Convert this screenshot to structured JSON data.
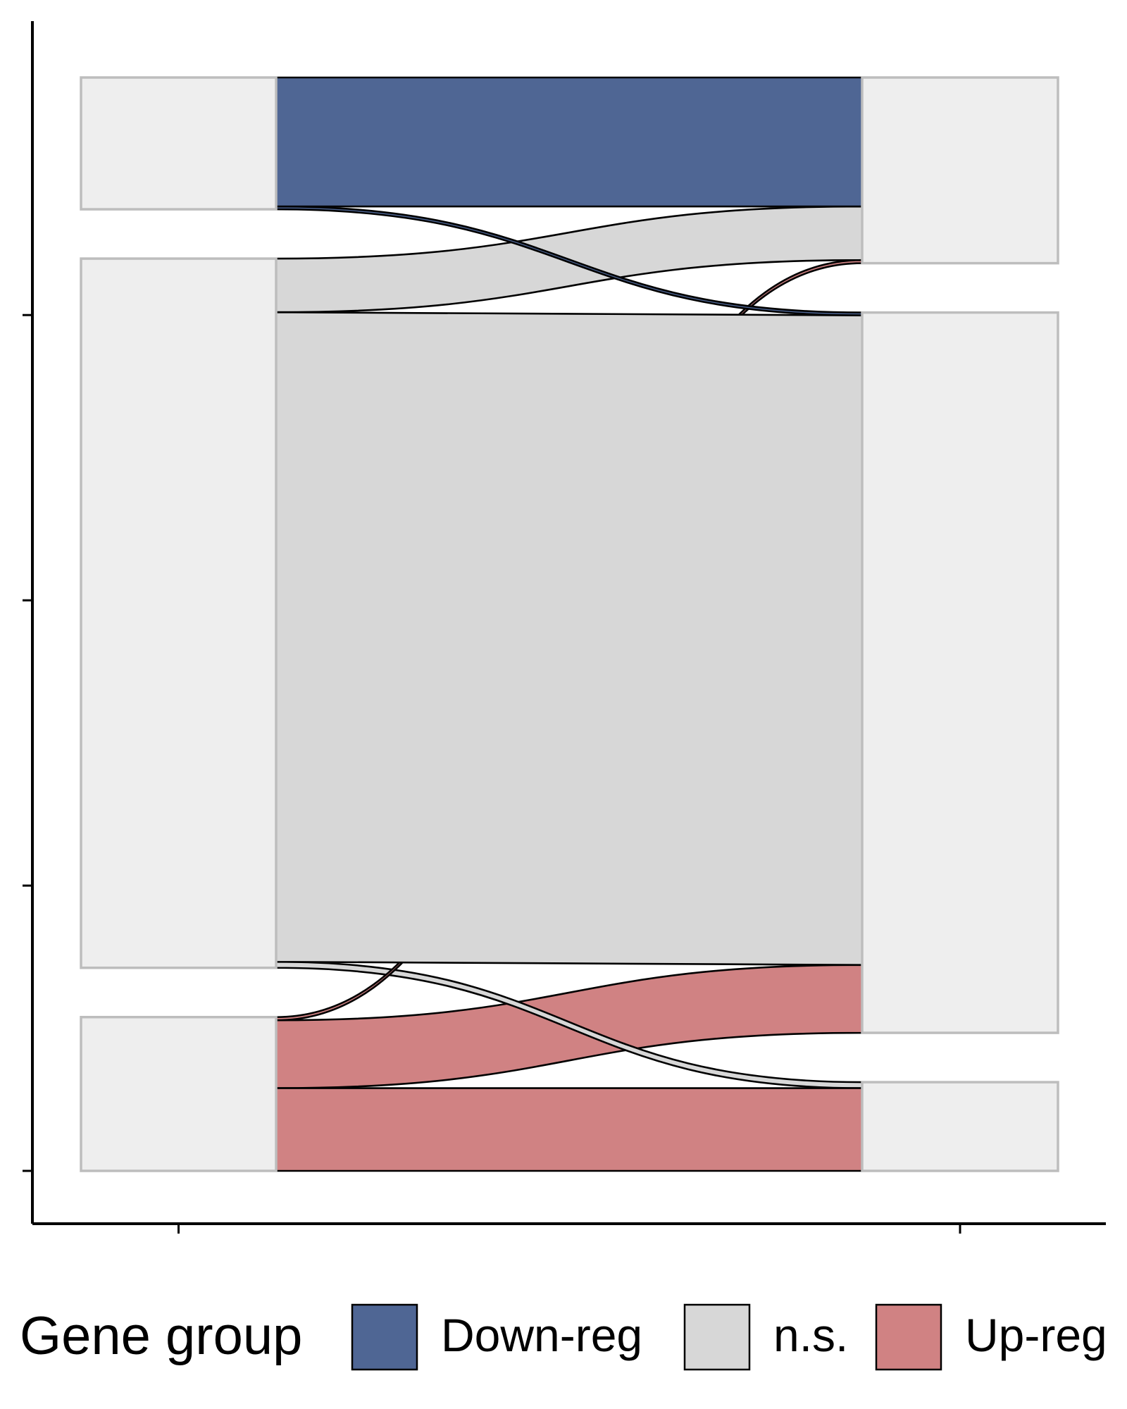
{
  "chart_data": {
    "type": "alluvial",
    "title": "",
    "xlabel": "",
    "ylabel": "",
    "x_categories": [
      "",
      ""
    ],
    "y_ticks_visible_without_labels": true,
    "legend": {
      "title": "Gene group",
      "placement": "bottom",
      "entries": [
        {
          "label": "Down-reg",
          "color": "#4f6694"
        },
        {
          "label": "n.s.",
          "color": "#d7d7d7"
        },
        {
          "label": "Up-reg",
          "color": "#d08283"
        }
      ]
    },
    "stratum_fill": "#eeeeee",
    "stratum_border": "#bdbdbd",
    "axis_1_strata": [
      {
        "group": "Down-reg",
        "value": 462
      },
      {
        "group": "n.s.",
        "value": 2486
      },
      {
        "group": "Up-reg",
        "value": 539
      }
    ],
    "axis_2_strata": [
      {
        "group": "Down-reg",
        "value": 651
      },
      {
        "group": "n.s.",
        "value": 2525
      },
      {
        "group": "Up-reg",
        "value": 311
      }
    ],
    "flows": [
      {
        "from": "Down-reg",
        "to": "Down-reg",
        "value": 452,
        "fill": "Down-reg"
      },
      {
        "from": "Down-reg",
        "to": "n.s.",
        "value": 10,
        "fill": "Down-reg"
      },
      {
        "from": "n.s.",
        "to": "Down-reg",
        "value": 188,
        "fill": "n.s."
      },
      {
        "from": "n.s.",
        "to": "n.s.",
        "value": 2277,
        "fill": "n.s."
      },
      {
        "from": "n.s.",
        "to": "Up-reg",
        "value": 21,
        "fill": "n.s."
      },
      {
        "from": "Up-reg",
        "to": "Down-reg",
        "value": 11,
        "fill": "Up-reg"
      },
      {
        "from": "Up-reg",
        "to": "n.s.",
        "value": 238,
        "fill": "Up-reg"
      },
      {
        "from": "Up-reg",
        "to": "Up-reg",
        "value": 290,
        "fill": "Up-reg"
      }
    ]
  }
}
